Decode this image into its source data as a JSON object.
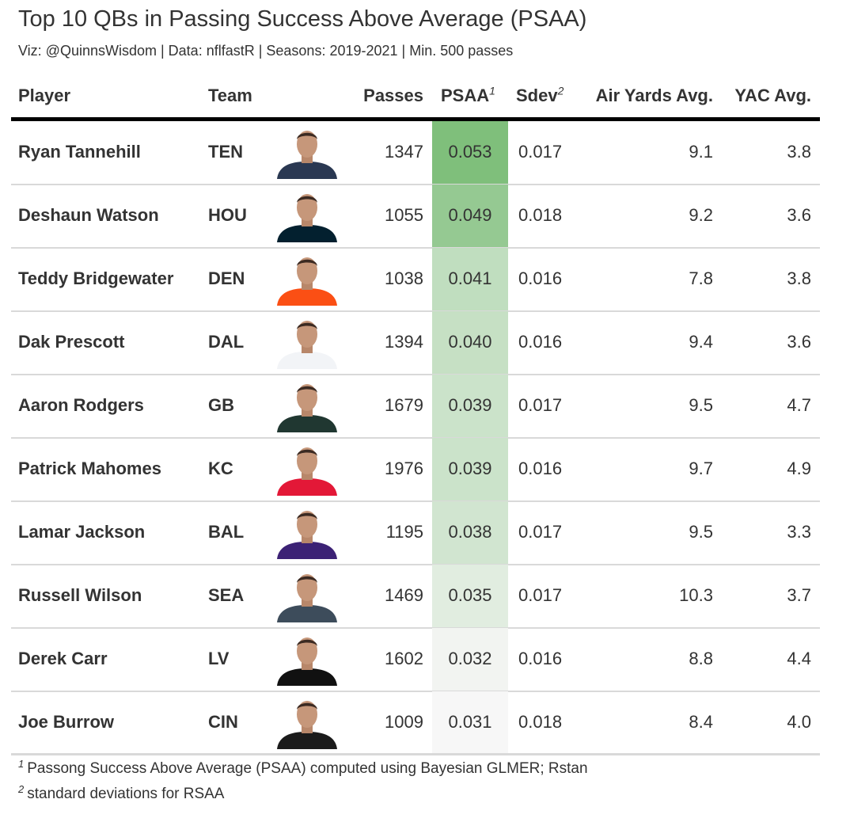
{
  "title": "Top 10 QBs in Passing Success Above Average (PSAA)",
  "subtitle": "Viz: @QuinnsWisdom | Data: nflfastR | Seasons: 2019-2021 | Min. 500 passes",
  "columns": {
    "player": "Player",
    "team": "Team",
    "passes": "Passes",
    "psaa": "PSAA",
    "psaa_sup": "1",
    "sdev": "Sdev",
    "sdev_sup": "2",
    "air": "Air Yards Avg.",
    "yac": "YAC Avg."
  },
  "colors": {
    "psaa_high": "#7fbf7b",
    "psaa_low": "#f7f7f7",
    "jerseys": {
      "TEN": "#2a3852",
      "HOU": "#03202f",
      "DEN": "#fb4f14",
      "DAL": "#f2f4f7",
      "GB": "#203731",
      "KC": "#e31837",
      "BAL": "#3c2275",
      "SEA": "#3d4c5b",
      "LV": "#111111",
      "CIN": "#1b1b1b"
    }
  },
  "chart_data": {
    "type": "table",
    "rows": [
      {
        "player": "Ryan Tannehill",
        "team": "TEN",
        "passes": "1347",
        "psaa": 0.053,
        "psaa_label": "0.053",
        "sdev": "0.017",
        "air": "9.1",
        "yac": "3.8"
      },
      {
        "player": "Deshaun Watson",
        "team": "HOU",
        "passes": "1055",
        "psaa": 0.049,
        "psaa_label": "0.049",
        "sdev": "0.018",
        "air": "9.2",
        "yac": "3.6"
      },
      {
        "player": "Teddy Bridgewater",
        "team": "DEN",
        "passes": "1038",
        "psaa": 0.041,
        "psaa_label": "0.041",
        "sdev": "0.016",
        "air": "7.8",
        "yac": "3.8"
      },
      {
        "player": "Dak Prescott",
        "team": "DAL",
        "passes": "1394",
        "psaa": 0.04,
        "psaa_label": "0.040",
        "sdev": "0.016",
        "air": "9.4",
        "yac": "3.6"
      },
      {
        "player": "Aaron Rodgers",
        "team": "GB",
        "passes": "1679",
        "psaa": 0.039,
        "psaa_label": "0.039",
        "sdev": "0.017",
        "air": "9.5",
        "yac": "4.7"
      },
      {
        "player": "Patrick Mahomes",
        "team": "KC",
        "passes": "1976",
        "psaa": 0.039,
        "psaa_label": "0.039",
        "sdev": "0.016",
        "air": "9.7",
        "yac": "4.9"
      },
      {
        "player": "Lamar Jackson",
        "team": "BAL",
        "passes": "1195",
        "psaa": 0.038,
        "psaa_label": "0.038",
        "sdev": "0.017",
        "air": "9.5",
        "yac": "3.3"
      },
      {
        "player": "Russell Wilson",
        "team": "SEA",
        "passes": "1469",
        "psaa": 0.035,
        "psaa_label": "0.035",
        "sdev": "0.017",
        "air": "10.3",
        "yac": "3.7"
      },
      {
        "player": "Derek Carr",
        "team": "LV",
        "passes": "1602",
        "psaa": 0.032,
        "psaa_label": "0.032",
        "sdev": "0.016",
        "air": "8.8",
        "yac": "4.4"
      },
      {
        "player": "Joe Burrow",
        "team": "CIN",
        "passes": "1009",
        "psaa": 0.031,
        "psaa_label": "0.031",
        "sdev": "0.018",
        "air": "8.4",
        "yac": "4.0"
      }
    ]
  },
  "footnotes": [
    {
      "mark": "1",
      "text": "Passong Success Above Average (PSAA) computed using Bayesian GLMER; Rstan"
    },
    {
      "mark": "2",
      "text": "standard deviations for RSAA"
    }
  ]
}
